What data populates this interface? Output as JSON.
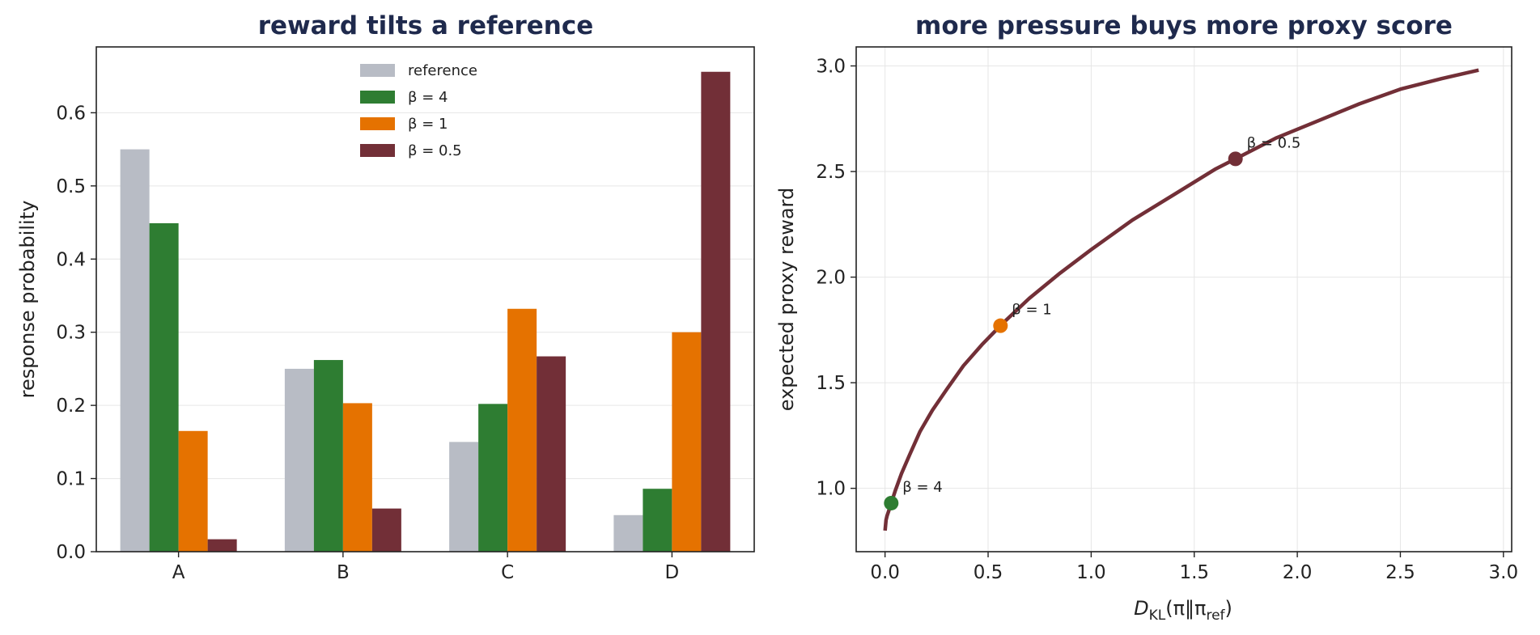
{
  "chart_data": [
    {
      "type": "bar",
      "title": "reward tilts a reference",
      "xlabel": "",
      "ylabel": "response probability",
      "categories": [
        "A",
        "B",
        "C",
        "D"
      ],
      "ylim": [
        0,
        0.69
      ],
      "yticks": [
        "0.0",
        "0.1",
        "0.2",
        "0.3",
        "0.4",
        "0.5",
        "0.6"
      ],
      "grid": true,
      "legend_position": "top-center",
      "series": [
        {
          "name": "reference",
          "color": "#b8bcc5",
          "values": [
            0.55,
            0.25,
            0.15,
            0.05
          ]
        },
        {
          "name": "β = 4",
          "color": "#2e7d32",
          "values": [
            0.449,
            0.262,
            0.202,
            0.086
          ]
        },
        {
          "name": "β = 1",
          "color": "#e57200",
          "values": [
            0.165,
            0.203,
            0.332,
            0.3
          ]
        },
        {
          "name": "β = 0.5",
          "color": "#722f37",
          "values": [
            0.017,
            0.059,
            0.267,
            0.656
          ]
        }
      ]
    },
    {
      "type": "line",
      "title": "more pressure buys more proxy score",
      "xlabel_main": "D",
      "xlabel_sub": "KL",
      "xlabel_rest": "(π‖π",
      "xlabel_ref": "ref",
      "xlabel_close": ")",
      "ylabel": "expected proxy reward",
      "xlim": [
        -0.14,
        3.04
      ],
      "ylim": [
        0.7,
        3.09
      ],
      "xticks": [
        "0.0",
        "0.5",
        "1.0",
        "1.5",
        "2.0",
        "2.5",
        "3.0"
      ],
      "yticks": [
        "1.0",
        "1.5",
        "2.0",
        "2.5",
        "3.0"
      ],
      "grid": true,
      "series": [
        {
          "color": "#722f37",
          "x": [
            0.0,
            0.005,
            0.01,
            0.02,
            0.03,
            0.05,
            0.08,
            0.12,
            0.17,
            0.23,
            0.3,
            0.38,
            0.47,
            0.57,
            0.7,
            0.85,
            1.0,
            1.2,
            1.4,
            1.6,
            1.7,
            1.9,
            2.1,
            2.3,
            2.5,
            2.7,
            2.88
          ],
          "y": [
            0.8,
            0.85,
            0.87,
            0.9,
            0.93,
            0.99,
            1.07,
            1.16,
            1.27,
            1.37,
            1.47,
            1.58,
            1.68,
            1.78,
            1.9,
            2.02,
            2.13,
            2.27,
            2.39,
            2.51,
            2.56,
            2.66,
            2.74,
            2.82,
            2.89,
            2.94,
            2.98
          ]
        }
      ],
      "points": [
        {
          "label": "β = 4",
          "x": 0.03,
          "y": 0.93,
          "color": "#2e7d32"
        },
        {
          "label": "β = 1",
          "x": 0.56,
          "y": 1.77,
          "color": "#e57200"
        },
        {
          "label": "β = 0.5",
          "x": 1.7,
          "y": 2.56,
          "color": "#722f37"
        }
      ]
    }
  ]
}
